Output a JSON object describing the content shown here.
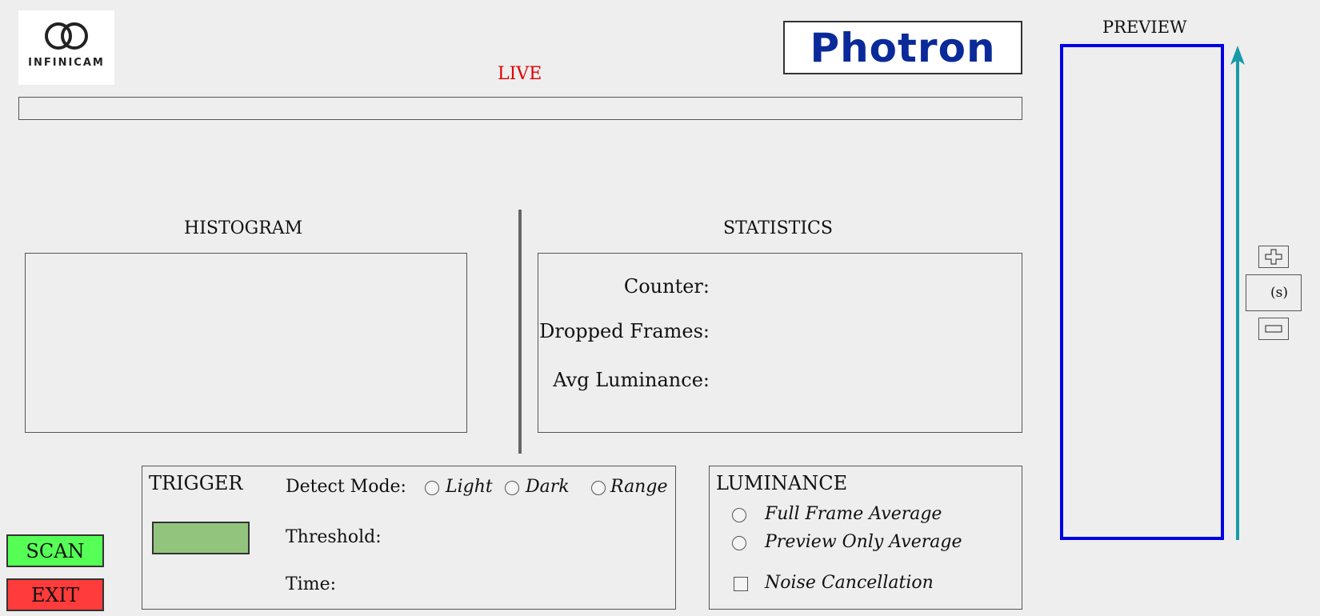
{
  "logos": {
    "infinicam": "INFINICAM",
    "photron": "Photron"
  },
  "live": {
    "label": "LIVE"
  },
  "histogram": {
    "title": "HISTOGRAM"
  },
  "statistics": {
    "title": "STATISTICS",
    "counter_label": "Counter:",
    "dropped_label": "Dropped Frames:",
    "luminance_label": "Avg Luminance:"
  },
  "trigger": {
    "title": "TRIGGER",
    "detect_label": "Detect Mode:",
    "threshold_label": "Threshold:",
    "time_label": "Time:",
    "modes": [
      "Light",
      "Dark",
      "Range"
    ]
  },
  "luminance": {
    "title": "LUMINANCE",
    "options": [
      "Full Frame Average",
      "Preview Only Average"
    ],
    "noise_label": "Noise Cancellation"
  },
  "preview": {
    "title": "PREVIEW",
    "zoom_unit": "(s)"
  },
  "buttons": {
    "scan": "SCAN",
    "exit": "EXIT"
  },
  "colors": {
    "live": "#e00000",
    "preview_border": "#0000e6",
    "arrow": "#1a9aa8",
    "scan": "#55ff55",
    "exit": "#ff3b3b",
    "trigger_indicator": "#93c47d",
    "photron": "#0b2a9a"
  },
  "icons": {
    "zoom_in": "plus-icon",
    "zoom_out": "minus-icon",
    "arrow": "up-arrow-icon"
  }
}
